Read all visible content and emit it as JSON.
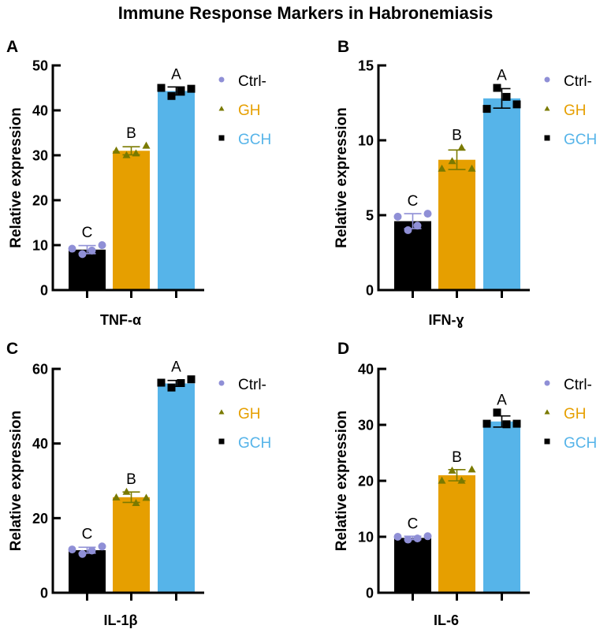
{
  "title": "Immune Response Markers in Habronemiasis",
  "legend": [
    {
      "label": "Ctrl-",
      "marker": "circle",
      "marker_color": "#8f8fd6",
      "text_color": "#000000"
    },
    {
      "label": "GH",
      "marker": "triangle",
      "marker_color": "#7a7a00",
      "text_color": "#e69f00"
    },
    {
      "label": "GCH",
      "marker": "square",
      "marker_color": "#000000",
      "text_color": "#56b4e9"
    }
  ],
  "bar_colors": [
    "#000000",
    "#e69f00",
    "#56b4e9"
  ],
  "errorbar_colors": [
    "#8f8fd6",
    "#7a7a00",
    "#000000"
  ],
  "chart_data": [
    {
      "panel": "A",
      "type": "bar",
      "xlabel": "TNF-α",
      "ylabel": "Relative expression",
      "ylim": [
        0,
        50
      ],
      "yticks": [
        0,
        10,
        20,
        30,
        40,
        50
      ],
      "categories": [
        "Ctrl-",
        "GH",
        "GCH"
      ],
      "values": [
        9.0,
        31.0,
        44.3
      ],
      "errors": [
        0.9,
        0.9,
        0.9
      ],
      "points": [
        [
          9.2,
          8.0,
          8.8,
          10.0
        ],
        [
          31.0,
          30.0,
          30.4,
          32.1
        ],
        [
          45.0,
          43.2,
          44.4,
          44.8
        ]
      ],
      "significance": [
        "C",
        "B",
        "A"
      ],
      "legend_position": "right"
    },
    {
      "panel": "B",
      "type": "bar",
      "xlabel": "IFN-ɣ",
      "ylabel": "Relative expression",
      "ylim": [
        0,
        15
      ],
      "yticks": [
        0,
        5,
        10,
        15
      ],
      "categories": [
        "Ctrl-",
        "GH",
        "GCH"
      ],
      "values": [
        4.6,
        8.7,
        12.8
      ],
      "errors": [
        0.5,
        0.65,
        0.65
      ],
      "points": [
        [
          4.9,
          4.0,
          4.3,
          5.1
        ],
        [
          8.1,
          8.6,
          9.5,
          8.1
        ],
        [
          12.1,
          13.5,
          12.9,
          12.4
        ]
      ],
      "significance": [
        "C",
        "B",
        "A"
      ],
      "legend_position": "right"
    },
    {
      "panel": "C",
      "type": "bar",
      "xlabel": "IL-1β",
      "ylabel": "Relative expression",
      "ylim": [
        0,
        60
      ],
      "yticks": [
        0,
        20,
        40,
        60
      ],
      "categories": [
        "Ctrl-",
        "GH",
        "GCH"
      ],
      "values": [
        11.4,
        25.6,
        56.1
      ],
      "errors": [
        0.8,
        1.4,
        0.8
      ],
      "points": [
        [
          11.6,
          10.4,
          11.3,
          12.4
        ],
        [
          25.5,
          27.0,
          24.0,
          25.4
        ],
        [
          56.3,
          55.0,
          56.2,
          57.2
        ]
      ],
      "significance": [
        "C",
        "B",
        "A"
      ],
      "legend_position": "right"
    },
    {
      "panel": "D",
      "type": "bar",
      "xlabel": "IL-6",
      "ylabel": "Relative expression",
      "ylim": [
        0,
        40
      ],
      "yticks": [
        0,
        10,
        20,
        30,
        40
      ],
      "categories": [
        "Ctrl-",
        "GH",
        "GCH"
      ],
      "values": [
        9.8,
        21.0,
        30.6
      ],
      "errors": [
        0.3,
        1.0,
        1.0
      ],
      "points": [
        [
          10.0,
          9.5,
          9.7,
          10.1
        ],
        [
          20.0,
          21.8,
          20.0,
          22.0
        ],
        [
          30.2,
          32.2,
          30.1,
          30.2
        ]
      ],
      "significance": [
        "C",
        "B",
        "A"
      ],
      "legend_position": "right"
    }
  ]
}
